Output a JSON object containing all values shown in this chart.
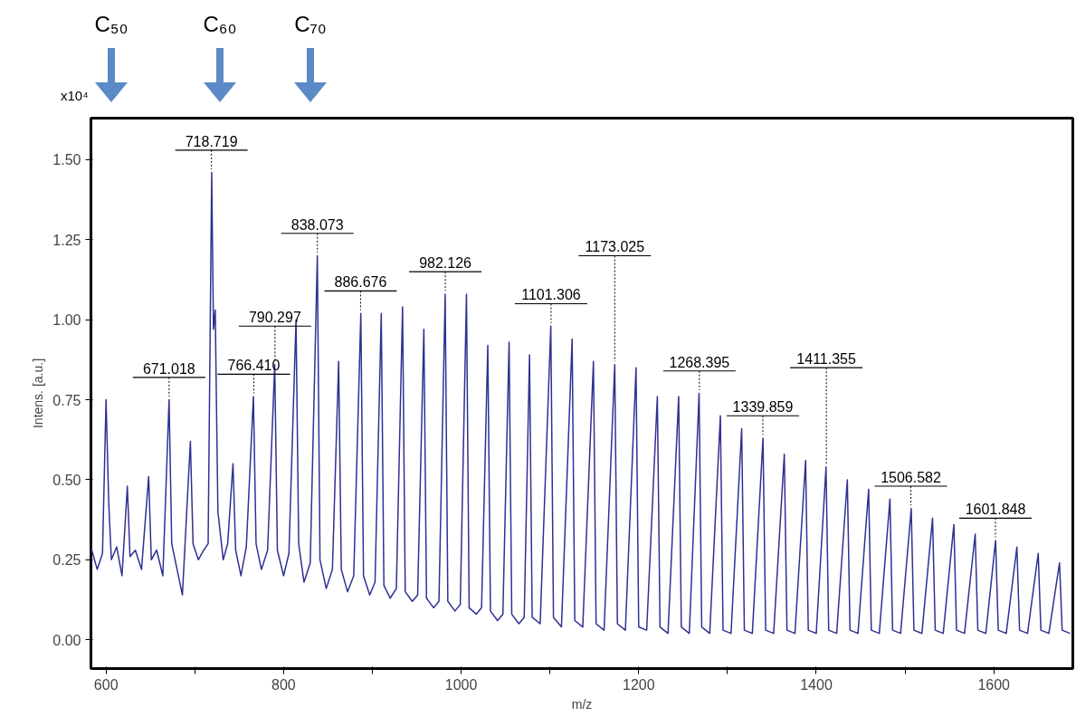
{
  "chart_data": {
    "type": "line",
    "xlabel": "m/z",
    "ylabel": "Intens. [a.u.]",
    "xlim": [
      583,
      1689
    ],
    "ylim": [
      -0.09,
      1.63
    ],
    "xticks": [
      600,
      {
        "value": 700,
        "label": null
      },
      800,
      {
        "value": 900,
        "label": null
      },
      1000,
      {
        "value": 1100,
        "label": null
      },
      1200,
      {
        "value": 1300,
        "label": null
      },
      1400,
      {
        "value": 1500,
        "label": null
      },
      1600
    ],
    "yticks": [
      {
        "value": 0,
        "label": "0.00"
      },
      {
        "value": 0.25,
        "label": "0.25"
      },
      {
        "value": 0.5,
        "label": "0.50"
      },
      {
        "value": 0.75,
        "label": "0.75"
      },
      {
        "value": 1.0,
        "label": "1.00"
      },
      {
        "value": 1.25,
        "label": "1.25"
      },
      {
        "value": 1.5,
        "label": "1.50"
      }
    ],
    "grid": false,
    "marker": "none",
    "line_style": "solid",
    "series": [
      {
        "color": "#2e3192",
        "x": [
          583,
          590,
          596,
          600,
          603,
          606,
          612,
          618,
          624,
          627,
          633,
          640,
          648,
          651,
          657,
          664,
          671,
          674,
          680,
          686,
          695,
          698,
          704,
          710,
          715,
          719,
          721,
          723,
          726,
          732,
          737,
          743,
          746,
          752,
          758,
          766,
          769,
          775,
          782,
          790,
          793,
          800,
          806,
          814,
          817,
          823,
          830,
          838,
          841,
          848,
          855,
          862,
          865,
          872,
          879,
          887,
          890,
          897,
          903,
          910,
          913,
          920,
          927,
          934,
          937,
          945,
          951,
          958,
          961,
          969,
          975,
          982,
          985,
          993,
          999,
          1006,
          1009,
          1017,
          1023,
          1030,
          1033,
          1041,
          1047,
          1054,
          1057,
          1065,
          1071,
          1077,
          1080,
          1089,
          1101,
          1104,
          1113,
          1125,
          1128,
          1137,
          1149,
          1152,
          1161,
          1173,
          1176,
          1185,
          1197,
          1200,
          1209,
          1221,
          1224,
          1233,
          1245,
          1248,
          1257,
          1268,
          1271,
          1280,
          1292,
          1295,
          1304,
          1316,
          1319,
          1328,
          1340,
          1343,
          1352,
          1364,
          1367,
          1376,
          1388,
          1391,
          1400,
          1411,
          1414,
          1423,
          1435,
          1438,
          1447,
          1459,
          1462,
          1471,
          1483,
          1486,
          1495,
          1507,
          1510,
          1519,
          1531,
          1534,
          1543,
          1555,
          1558,
          1567,
          1579,
          1582,
          1591,
          1602,
          1605,
          1614,
          1626,
          1629,
          1638,
          1650,
          1653,
          1662,
          1674,
          1677,
          1686
        ],
        "values": [
          0.29,
          0.22,
          0.27,
          0.75,
          0.43,
          0.25,
          0.29,
          0.2,
          0.48,
          0.26,
          0.28,
          0.22,
          0.51,
          0.25,
          0.28,
          0.2,
          0.75,
          0.3,
          0.22,
          0.14,
          0.62,
          0.3,
          0.25,
          0.28,
          0.3,
          1.46,
          0.97,
          1.03,
          0.4,
          0.25,
          0.3,
          0.55,
          0.28,
          0.2,
          0.29,
          0.76,
          0.3,
          0.22,
          0.28,
          0.86,
          0.28,
          0.2,
          0.27,
          1.0,
          0.3,
          0.18,
          0.24,
          1.2,
          0.25,
          0.16,
          0.22,
          0.87,
          0.22,
          0.15,
          0.2,
          1.02,
          0.2,
          0.14,
          0.18,
          1.02,
          0.17,
          0.13,
          0.16,
          1.04,
          0.15,
          0.12,
          0.14,
          0.97,
          0.13,
          0.1,
          0.12,
          1.08,
          0.12,
          0.09,
          0.11,
          1.08,
          0.1,
          0.08,
          0.1,
          0.92,
          0.09,
          0.06,
          0.08,
          0.93,
          0.08,
          0.05,
          0.07,
          0.89,
          0.07,
          0.05,
          0.98,
          0.07,
          0.04,
          0.94,
          0.06,
          0.04,
          0.87,
          0.05,
          0.03,
          0.86,
          0.05,
          0.03,
          0.85,
          0.04,
          0.03,
          0.76,
          0.04,
          0.02,
          0.76,
          0.04,
          0.02,
          0.77,
          0.04,
          0.02,
          0.7,
          0.03,
          0.02,
          0.66,
          0.03,
          0.02,
          0.63,
          0.03,
          0.02,
          0.58,
          0.03,
          0.02,
          0.56,
          0.03,
          0.02,
          0.54,
          0.03,
          0.02,
          0.5,
          0.03,
          0.02,
          0.47,
          0.03,
          0.02,
          0.44,
          0.03,
          0.02,
          0.41,
          0.03,
          0.02,
          0.38,
          0.03,
          0.02,
          0.36,
          0.03,
          0.02,
          0.33,
          0.03,
          0.02,
          0.31,
          0.03,
          0.02,
          0.29,
          0.03,
          0.02,
          0.27,
          0.03,
          0.02,
          0.24,
          0.03,
          0.02
        ]
      }
    ],
    "annotations": [
      "x10⁴",
      "C₅₀",
      "C₆₀",
      "C₇₀",
      {
        "text": "671.018",
        "x": 671.018,
        "y": 0.75
      },
      {
        "text": "718.719",
        "x": 718.719,
        "y": 1.46
      },
      {
        "text": "766.410",
        "x": 766.41,
        "y": 0.76
      },
      {
        "text": "790.297",
        "x": 790.297,
        "y": 0.86
      },
      {
        "text": "838.073",
        "x": 838.073,
        "y": 1.2
      },
      {
        "text": "886.676",
        "x": 886.676,
        "y": 1.02
      },
      {
        "text": "982.126",
        "x": 982.126,
        "y": 1.08
      },
      {
        "text": "1101.306",
        "x": 1101.306,
        "y": 0.98
      },
      {
        "text": "1173.025",
        "x": 1173.025,
        "y": 0.86
      },
      {
        "text": "1268.395",
        "x": 1268.395,
        "y": 0.77
      },
      {
        "text": "1339.859",
        "x": 1339.859,
        "y": 0.63
      },
      {
        "text": "1411.355",
        "x": 1411.355,
        "y": 0.54
      },
      {
        "text": "1506.582",
        "x": 1506.582,
        "y": 0.41
      },
      {
        "text": "1601.848",
        "x": 1601.848,
        "y": 0.31
      }
    ]
  }
}
